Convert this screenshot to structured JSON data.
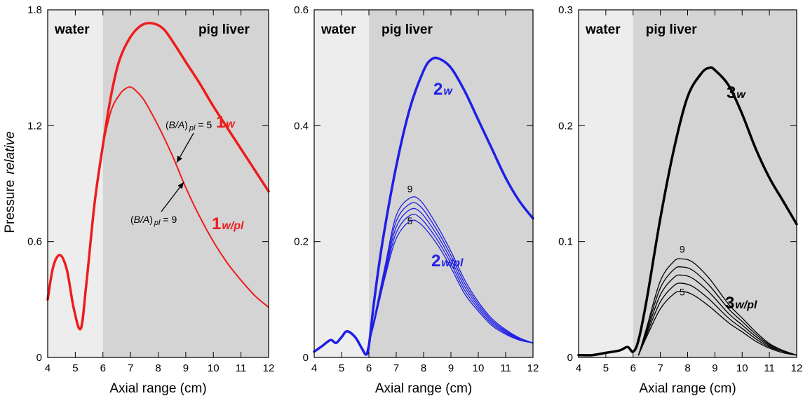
{
  "colors": {
    "water_bg": "#ededed",
    "liver_bg": "#d4d4d4",
    "red": "#ee1c1c",
    "blue": "#1f1fe6",
    "black": "#000000"
  },
  "y_axis_title": {
    "main": "Pressure",
    "italic": "relative"
  },
  "chart_data": [
    {
      "type": "line",
      "xlabel": "Axial range  (cm)",
      "xlim": [
        4,
        12
      ],
      "ylim": [
        0,
        1.8
      ],
      "x_ticks": [
        4,
        5,
        6,
        7,
        8,
        9,
        10,
        11,
        12
      ],
      "y_ticks": [
        "0",
        "0.6",
        "1.2",
        "1.8"
      ],
      "y_tick_values": [
        0,
        0.6,
        1.2,
        1.8
      ],
      "regions": [
        {
          "label": "water",
          "from": 4,
          "to": 6
        },
        {
          "label": "pig liver",
          "from": 6,
          "to": 12
        }
      ],
      "color": "#ee1c1c",
      "series": [
        {
          "name_main": "1",
          "name_sub": "w",
          "width": 3.5,
          "x": [
            4.0,
            4.2,
            4.45,
            4.7,
            4.95,
            5.2,
            5.4,
            5.7,
            6.0,
            6.3,
            6.6,
            7.0,
            7.4,
            7.8,
            8.2,
            8.6,
            9.0,
            9.5,
            10.0,
            10.5,
            11.0,
            11.5,
            12.0
          ],
          "y": [
            0.3,
            0.47,
            0.53,
            0.45,
            0.25,
            0.15,
            0.38,
            0.8,
            1.1,
            1.36,
            1.54,
            1.66,
            1.72,
            1.73,
            1.7,
            1.62,
            1.53,
            1.42,
            1.3,
            1.19,
            1.08,
            0.97,
            0.86
          ]
        },
        {
          "name_main": "1",
          "name_sub": "w/pl",
          "width": 2,
          "x": [
            6.0,
            6.3,
            6.6,
            6.8,
            7.0,
            7.2,
            7.5,
            8.0,
            8.5,
            9.0,
            9.5,
            10.0,
            10.5,
            11.0,
            11.5,
            12.0
          ],
          "y": [
            1.1,
            1.28,
            1.36,
            1.39,
            1.4,
            1.38,
            1.33,
            1.2,
            1.05,
            0.88,
            0.73,
            0.6,
            0.49,
            0.4,
            0.32,
            0.26
          ]
        }
      ],
      "annotations": [
        {
          "prefix": "(",
          "italic": "B/A",
          "mid": ")",
          "sub": "pl",
          "suffix": " = 5"
        },
        {
          "prefix": "(",
          "italic": "B/A",
          "mid": ")",
          "sub": "pl",
          "suffix": " = 9"
        }
      ],
      "family_labels": []
    },
    {
      "type": "line",
      "xlabel": "Axial range  (cm)",
      "xlim": [
        4,
        12
      ],
      "ylim": [
        0,
        0.6
      ],
      "x_ticks": [
        4,
        5,
        6,
        7,
        8,
        9,
        10,
        11,
        12
      ],
      "y_ticks": [
        "0",
        "0.2",
        "0.4",
        "0.6"
      ],
      "y_tick_values": [
        0,
        0.2,
        0.4,
        0.6
      ],
      "regions": [
        {
          "label": "water",
          "from": 4,
          "to": 6
        },
        {
          "label": "pig liver",
          "from": 6,
          "to": 12
        }
      ],
      "color": "#1f1fe6",
      "series": [
        {
          "name_main": "2",
          "name_sub": "w",
          "width": 3.5,
          "x": [
            4.0,
            4.3,
            4.6,
            4.8,
            5.0,
            5.2,
            5.5,
            5.75,
            5.9,
            6.0,
            6.2,
            6.5,
            7.0,
            7.5,
            8.0,
            8.3,
            8.6,
            9.0,
            9.5,
            10.0,
            10.5,
            11.0,
            11.5,
            12.0
          ],
          "y": [
            0.01,
            0.02,
            0.03,
            0.025,
            0.035,
            0.045,
            0.035,
            0.015,
            0.005,
            0.02,
            0.1,
            0.2,
            0.33,
            0.43,
            0.495,
            0.515,
            0.515,
            0.5,
            0.46,
            0.41,
            0.36,
            0.31,
            0.27,
            0.24
          ]
        },
        {
          "name_main": "",
          "name_sub": "",
          "width": 1.3,
          "x": [
            5.9,
            6.2,
            6.6,
            7.0,
            7.5,
            7.9,
            8.5,
            9.0,
            9.5,
            10.0,
            10.5,
            11.0,
            11.5,
            12.0
          ],
          "y": [
            0.005,
            0.06,
            0.14,
            0.205,
            0.235,
            0.23,
            0.195,
            0.155,
            0.11,
            0.08,
            0.055,
            0.04,
            0.03,
            0.025
          ]
        },
        {
          "name_main": "",
          "name_sub": "",
          "width": 1.3,
          "x": [
            5.9,
            6.2,
            6.6,
            7.0,
            7.5,
            7.9,
            8.5,
            9.0,
            9.5,
            10.0,
            10.5,
            11.0,
            11.5,
            12.0
          ],
          "y": [
            0.005,
            0.062,
            0.145,
            0.215,
            0.245,
            0.24,
            0.203,
            0.162,
            0.116,
            0.084,
            0.058,
            0.042,
            0.031,
            0.025
          ]
        },
        {
          "name_main": "",
          "name_sub": "",
          "width": 1.3,
          "x": [
            5.9,
            6.2,
            6.6,
            7.0,
            7.5,
            7.9,
            8.5,
            9.0,
            9.5,
            10.0,
            10.5,
            11.0,
            11.5,
            12.0
          ],
          "y": [
            0.005,
            0.064,
            0.15,
            0.225,
            0.255,
            0.25,
            0.211,
            0.169,
            0.122,
            0.088,
            0.061,
            0.044,
            0.032,
            0.025
          ]
        },
        {
          "name_main": "",
          "name_sub": "",
          "width": 1.3,
          "x": [
            5.9,
            6.2,
            6.6,
            7.0,
            7.5,
            7.9,
            8.5,
            9.0,
            9.5,
            10.0,
            10.5,
            11.0,
            11.5,
            12.0
          ],
          "y": [
            0.005,
            0.066,
            0.155,
            0.235,
            0.265,
            0.26,
            0.219,
            0.176,
            0.128,
            0.092,
            0.064,
            0.046,
            0.033,
            0.025
          ]
        },
        {
          "name_main": "2",
          "name_sub": "w/pl",
          "width": 1.3,
          "x": [
            5.9,
            6.2,
            6.6,
            7.0,
            7.5,
            7.9,
            8.5,
            9.0,
            9.5,
            10.0,
            10.5,
            11.0,
            11.5,
            12.0
          ],
          "y": [
            0.005,
            0.068,
            0.16,
            0.245,
            0.275,
            0.27,
            0.227,
            0.183,
            0.134,
            0.096,
            0.067,
            0.048,
            0.034,
            0.025
          ]
        }
      ],
      "annotations": [],
      "family_labels": [
        {
          "text": "9",
          "x": 7.5,
          "y": 0.28
        },
        {
          "text": "5",
          "x": 7.5,
          "y": 0.225
        }
      ]
    },
    {
      "type": "line",
      "xlabel": "Axial range  (cm)",
      "xlim": [
        4,
        12
      ],
      "ylim": [
        0,
        0.3
      ],
      "x_ticks": [
        4,
        5,
        6,
        7,
        8,
        9,
        10,
        11,
        12
      ],
      "y_ticks": [
        "0",
        "0.1",
        "0.2",
        "0.3"
      ],
      "y_tick_values": [
        0,
        0.1,
        0.2,
        0.3
      ],
      "regions": [
        {
          "label": "water",
          "from": 4,
          "to": 6
        },
        {
          "label": "pig liver",
          "from": 6,
          "to": 12
        }
      ],
      "color": "#000000",
      "series": [
        {
          "name_main": "3",
          "name_sub": "w",
          "width": 3.5,
          "x": [
            4.0,
            4.5,
            5.0,
            5.5,
            5.8,
            6.0,
            6.2,
            6.5,
            7.0,
            7.5,
            8.0,
            8.5,
            8.8,
            9.0,
            9.5,
            10.0,
            10.5,
            11.0,
            11.5,
            12.0
          ],
          "y": [
            0.002,
            0.002,
            0.004,
            0.006,
            0.009,
            0.005,
            0.015,
            0.05,
            0.12,
            0.18,
            0.225,
            0.245,
            0.25,
            0.248,
            0.235,
            0.21,
            0.18,
            0.155,
            0.135,
            0.115
          ]
        },
        {
          "name_main": "",
          "name_sub": "",
          "width": 1.3,
          "x": [
            6.2,
            6.5,
            7.0,
            7.5,
            7.8,
            8.2,
            8.8,
            9.5,
            10.0,
            10.5,
            11.0,
            11.5,
            12.0
          ],
          "y": [
            0.002,
            0.018,
            0.042,
            0.055,
            0.057,
            0.054,
            0.044,
            0.03,
            0.022,
            0.014,
            0.008,
            0.004,
            0.002
          ]
        },
        {
          "name_main": "",
          "name_sub": "",
          "width": 1.3,
          "x": [
            6.2,
            6.5,
            7.0,
            7.5,
            7.8,
            8.2,
            8.8,
            9.5,
            10.0,
            10.5,
            11.0,
            11.5,
            12.0
          ],
          "y": [
            0.002,
            0.02,
            0.048,
            0.062,
            0.064,
            0.061,
            0.05,
            0.034,
            0.025,
            0.016,
            0.009,
            0.005,
            0.002
          ]
        },
        {
          "name_main": "",
          "name_sub": "",
          "width": 1.3,
          "x": [
            6.2,
            6.5,
            7.0,
            7.5,
            7.8,
            8.2,
            8.8,
            9.5,
            10.0,
            10.5,
            11.0,
            11.5,
            12.0
          ],
          "y": [
            0.002,
            0.022,
            0.054,
            0.069,
            0.071,
            0.068,
            0.056,
            0.038,
            0.028,
            0.018,
            0.01,
            0.005,
            0.002
          ]
        },
        {
          "name_main": "",
          "name_sub": "",
          "width": 1.3,
          "x": [
            6.2,
            6.5,
            7.0,
            7.5,
            7.8,
            8.2,
            8.8,
            9.5,
            10.0,
            10.5,
            11.0,
            11.5,
            12.0
          ],
          "y": [
            0.002,
            0.024,
            0.06,
            0.076,
            0.078,
            0.075,
            0.062,
            0.042,
            0.031,
            0.02,
            0.011,
            0.006,
            0.002
          ]
        },
        {
          "name_main": "3",
          "name_sub": "w/pl",
          "width": 1.3,
          "x": [
            6.2,
            6.5,
            7.0,
            7.5,
            7.8,
            8.2,
            8.8,
            9.5,
            10.0,
            10.5,
            11.0,
            11.5,
            12.0
          ],
          "y": [
            0.002,
            0.026,
            0.066,
            0.083,
            0.085,
            0.082,
            0.068,
            0.046,
            0.034,
            0.022,
            0.012,
            0.006,
            0.002
          ]
        }
      ],
      "annotations": [],
      "family_labels": [
        {
          "text": "9",
          "x": 7.8,
          "y": 0.088
        },
        {
          "text": "5",
          "x": 7.8,
          "y": 0.051
        }
      ]
    }
  ]
}
